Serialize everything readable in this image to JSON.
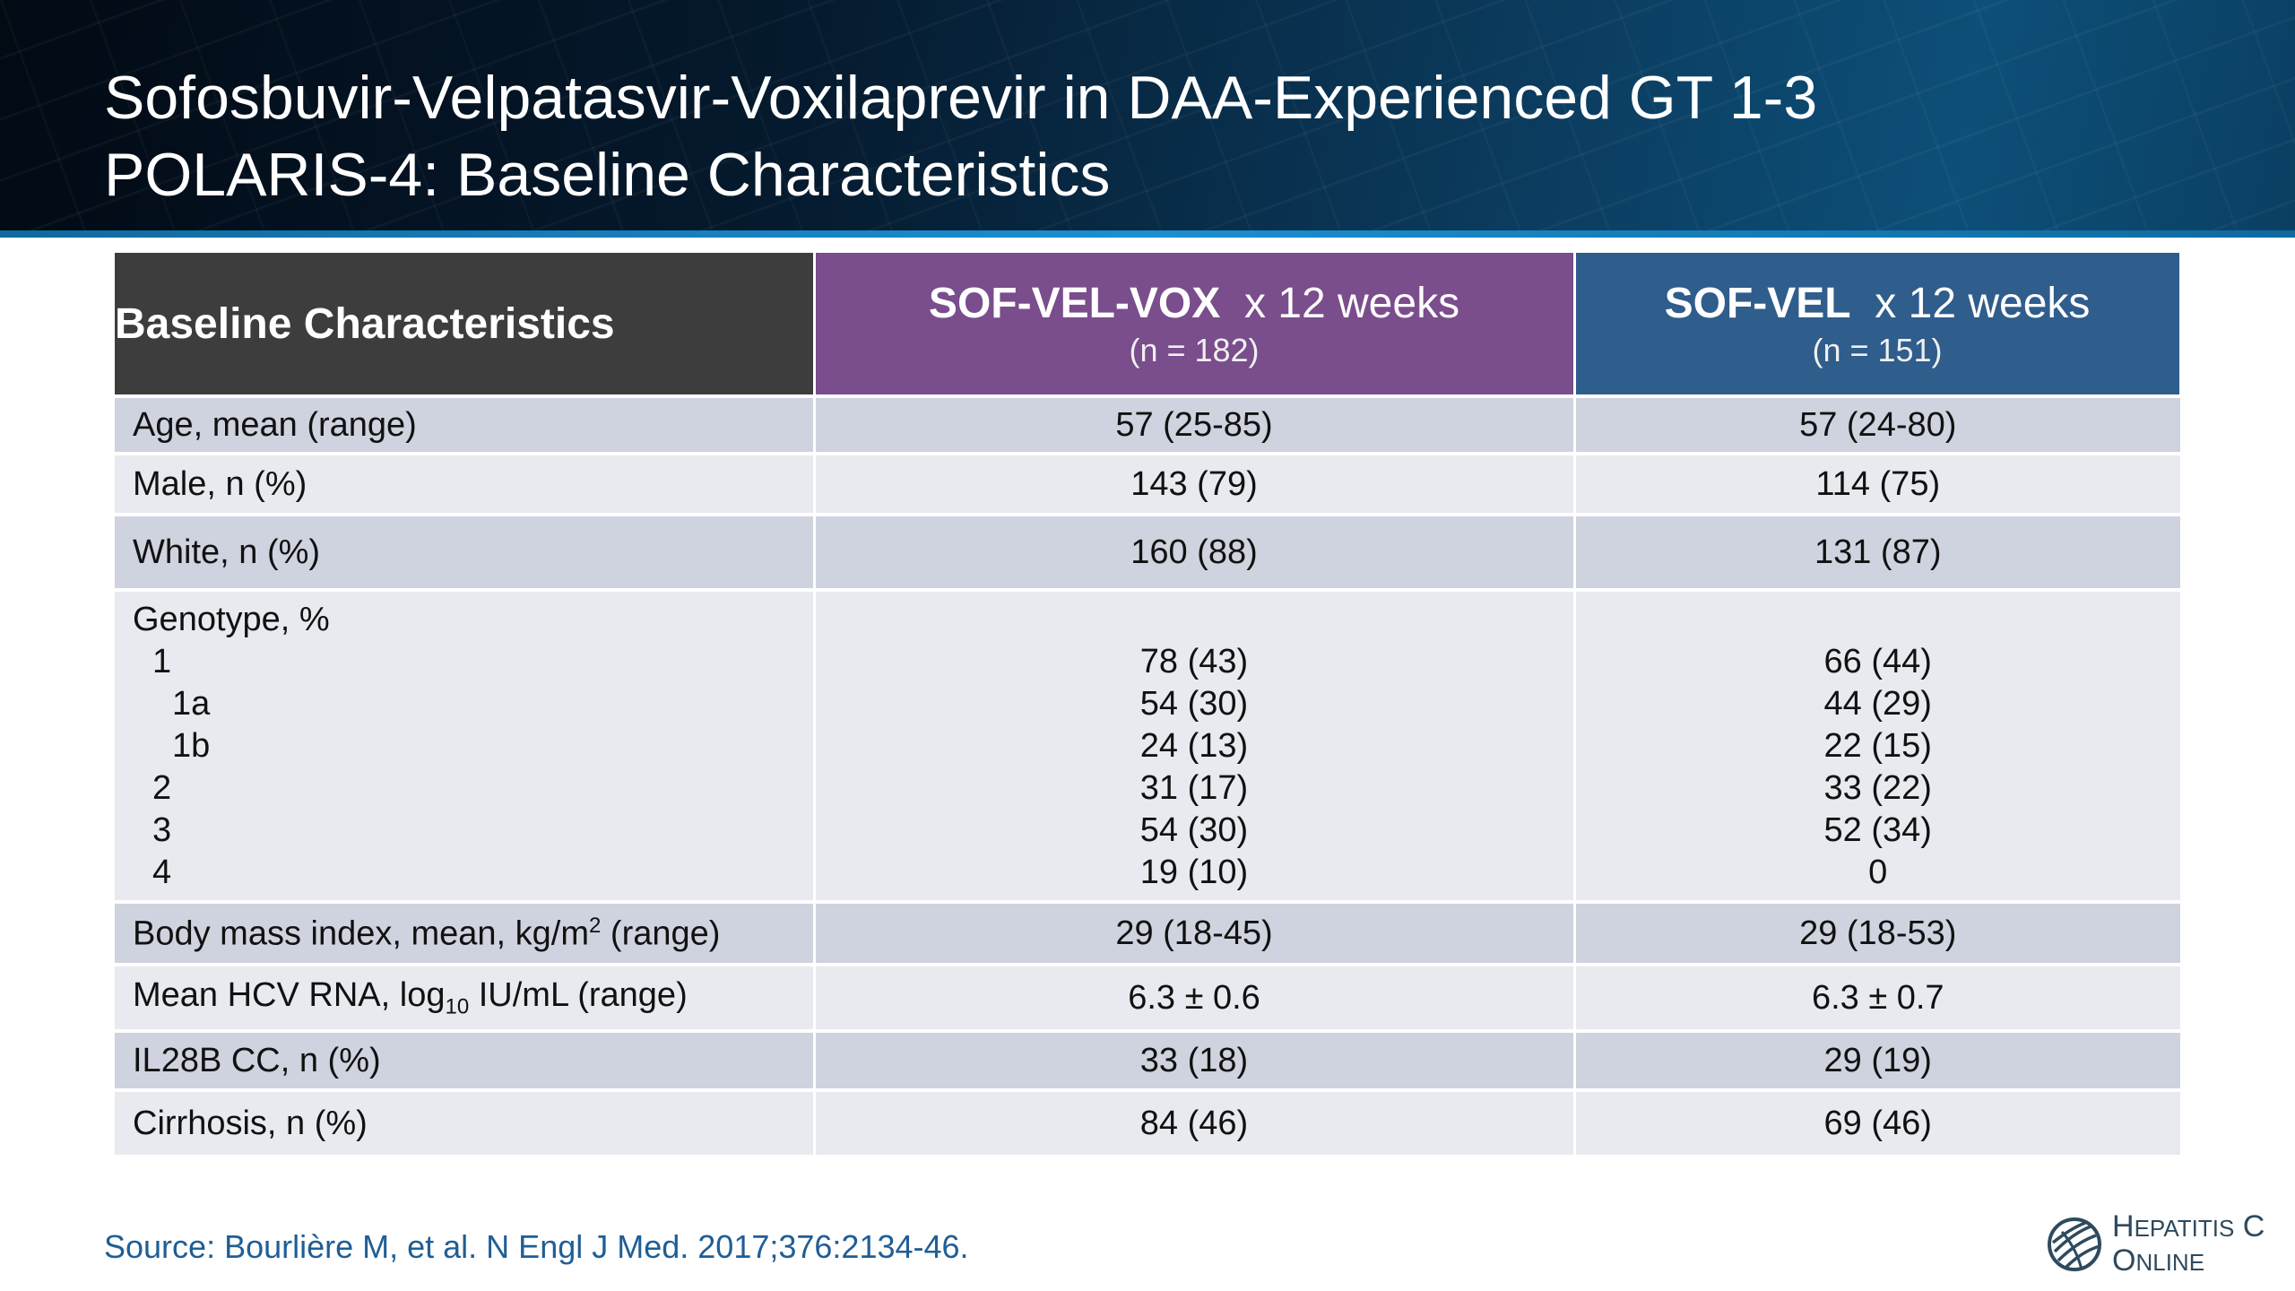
{
  "slide": {
    "title_line1": "Sofosbuvir-Velpatasvir-Voxilaprevir in DAA-Experienced GT 1-3",
    "title_line2": "POLARIS-4: Baseline Characteristics"
  },
  "table": {
    "header": {
      "col1": "Baseline Characteristics",
      "col2_main": "SOF-VEL-VOX",
      "col2_weeks": "x 12 weeks",
      "col2_n": "(n = 182)",
      "col3_main": "SOF-VEL",
      "col3_weeks": "x 12 weeks",
      "col3_n": "(n = 151)"
    },
    "rows": [
      {
        "label": "Age, mean (range)",
        "vox": "57 (25-85)",
        "vel": "57 (24-80)"
      },
      {
        "label": "Male, n (%)",
        "vox": "143 (79)",
        "vel": "114 (75)"
      },
      {
        "label": "White, n (%)",
        "vox": "160 (88)",
        "vel": "131 (87)"
      }
    ],
    "genotype": {
      "label": "Genotype, %",
      "subrows": [
        {
          "label": "1",
          "vox": "78 (43)",
          "vel": "66 (44)"
        },
        {
          "label": "1a",
          "vox": "54 (30)",
          "vel": "44 (29)"
        },
        {
          "label": "1b",
          "vox": "24 (13)",
          "vel": "22 (15)"
        },
        {
          "label": "2",
          "vox": "31 (17)",
          "vel": "33 (22)"
        },
        {
          "label": "3",
          "vox": "54 (30)",
          "vel": "52 (34)"
        },
        {
          "label": "4",
          "vox": "19 (10)",
          "vel": "0"
        }
      ]
    },
    "bmi": {
      "label_pre": "Body mass index, mean, kg/m",
      "label_sup": "2",
      "label_post": " (range)",
      "vox": "29 (18-45)",
      "vel": "29 (18-53)"
    },
    "hcv": {
      "label_pre": "Mean HCV RNA, log",
      "label_sub": "10",
      "label_post": " IU/mL (range)",
      "vox": "6.3 ± 0.6",
      "vel": "6.3 ± 0.7"
    },
    "il28b": {
      "label": "IL28B CC, n (%)",
      "vox": "33 (18)",
      "vel": "29 (19)"
    },
    "cirrhosis": {
      "label": "Cirrhosis, n (%)",
      "vox": "84 (46)",
      "vel": "69 (46)"
    }
  },
  "footer": {
    "source": "Source: Bourlière M, et al. N Engl J Med. 2017;376:2134-46.",
    "logo_line1_big": "H",
    "logo_line1_small": "EPATITIS",
    "logo_line1_end": "C",
    "logo_line2_big": "O",
    "logo_line2_small": "NLINE"
  }
}
